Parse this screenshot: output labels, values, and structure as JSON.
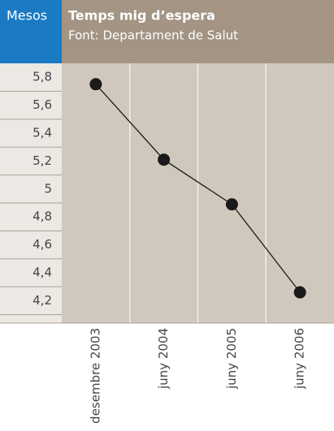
{
  "chart_data": {
    "type": "line",
    "title": "Temps mig d’espera",
    "subtitle": "Font: Departament de Salut",
    "y_label": "Mesos",
    "categories": [
      "desembre 2003",
      "juny 2004",
      "juny 2005",
      "juny 2006"
    ],
    "series": [
      {
        "name": "Temps mig d’espera",
        "color": "#1a1a1a",
        "values": [
          5.75,
          5.21,
          4.89,
          4.26
        ]
      }
    ],
    "ylim": [
      4.04,
      5.9
    ],
    "yticks": [
      {
        "value": 5.8,
        "label": "5,8"
      },
      {
        "value": 5.6,
        "label": "5,6"
      },
      {
        "value": 5.4,
        "label": "5,4"
      },
      {
        "value": 5.2,
        "label": "5,2"
      },
      5,
      {
        "value": 4.8,
        "label": "4,8"
      },
      {
        "value": 4.6,
        "label": "4,6"
      },
      {
        "value": 4.4,
        "label": "4,4"
      },
      {
        "value": 4.2,
        "label": "4,2"
      }
    ],
    "grid": false
  }
}
